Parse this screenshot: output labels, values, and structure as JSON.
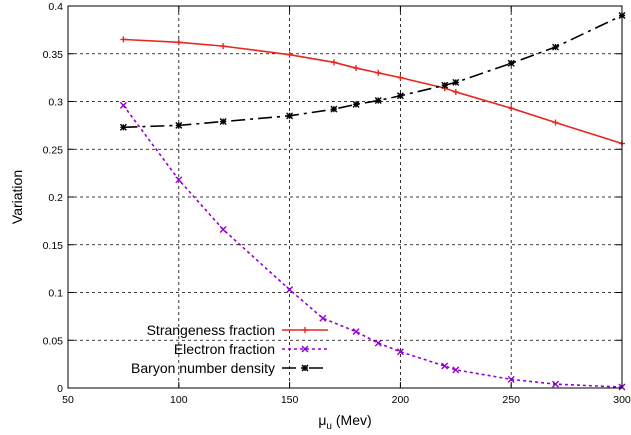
{
  "chart_data": {
    "type": "line",
    "xlabel": "μ",
    "xlabel_sub": "u",
    "xlabel_unit": " (Mev)",
    "ylabel": "Variation",
    "xlim": [
      50,
      300
    ],
    "ylim": [
      0,
      0.4
    ],
    "xticks": [
      50,
      100,
      150,
      200,
      250,
      300
    ],
    "xtick_labels": [
      "50",
      "100",
      "150",
      "200",
      "250",
      "300"
    ],
    "yticks": [
      0,
      0.05,
      0.1,
      0.15,
      0.2,
      0.25,
      0.3,
      0.35,
      0.4
    ],
    "ytick_labels": [
      "0",
      "0.05",
      "0.1",
      "0.15",
      "0.2",
      "0.25",
      "0.3",
      "0.35",
      "0.4"
    ],
    "grid": true,
    "legend_position": "bottom-left",
    "series": [
      {
        "name": "Strangeness fraction",
        "color": "#e8281e",
        "line_style": "solid",
        "marker": "plus",
        "x": [
          75,
          100,
          120,
          150,
          170,
          180,
          190,
          200,
          220,
          225,
          250,
          270,
          300
        ],
        "y": [
          0.365,
          0.362,
          0.358,
          0.349,
          0.341,
          0.335,
          0.33,
          0.325,
          0.314,
          0.31,
          0.293,
          0.278,
          0.256
        ]
      },
      {
        "name": "Electron fraction",
        "color": "#9400d3",
        "line_style": "dotted",
        "marker": "x",
        "x": [
          75,
          100,
          120,
          150,
          165,
          180,
          190,
          200,
          220,
          225,
          250,
          270,
          300
        ],
        "y": [
          0.296,
          0.218,
          0.166,
          0.103,
          0.073,
          0.059,
          0.047,
          0.038,
          0.023,
          0.019,
          0.009,
          0.004,
          0.001
        ]
      },
      {
        "name": "Baryon number density",
        "color": "#000000",
        "line_style": "dash-dot",
        "marker": "star",
        "x": [
          75,
          100,
          120,
          150,
          170,
          180,
          190,
          200,
          220,
          225,
          250,
          270,
          300
        ],
        "y": [
          0.273,
          0.275,
          0.279,
          0.285,
          0.292,
          0.297,
          0.301,
          0.306,
          0.317,
          0.32,
          0.34,
          0.357,
          0.39
        ]
      }
    ]
  }
}
